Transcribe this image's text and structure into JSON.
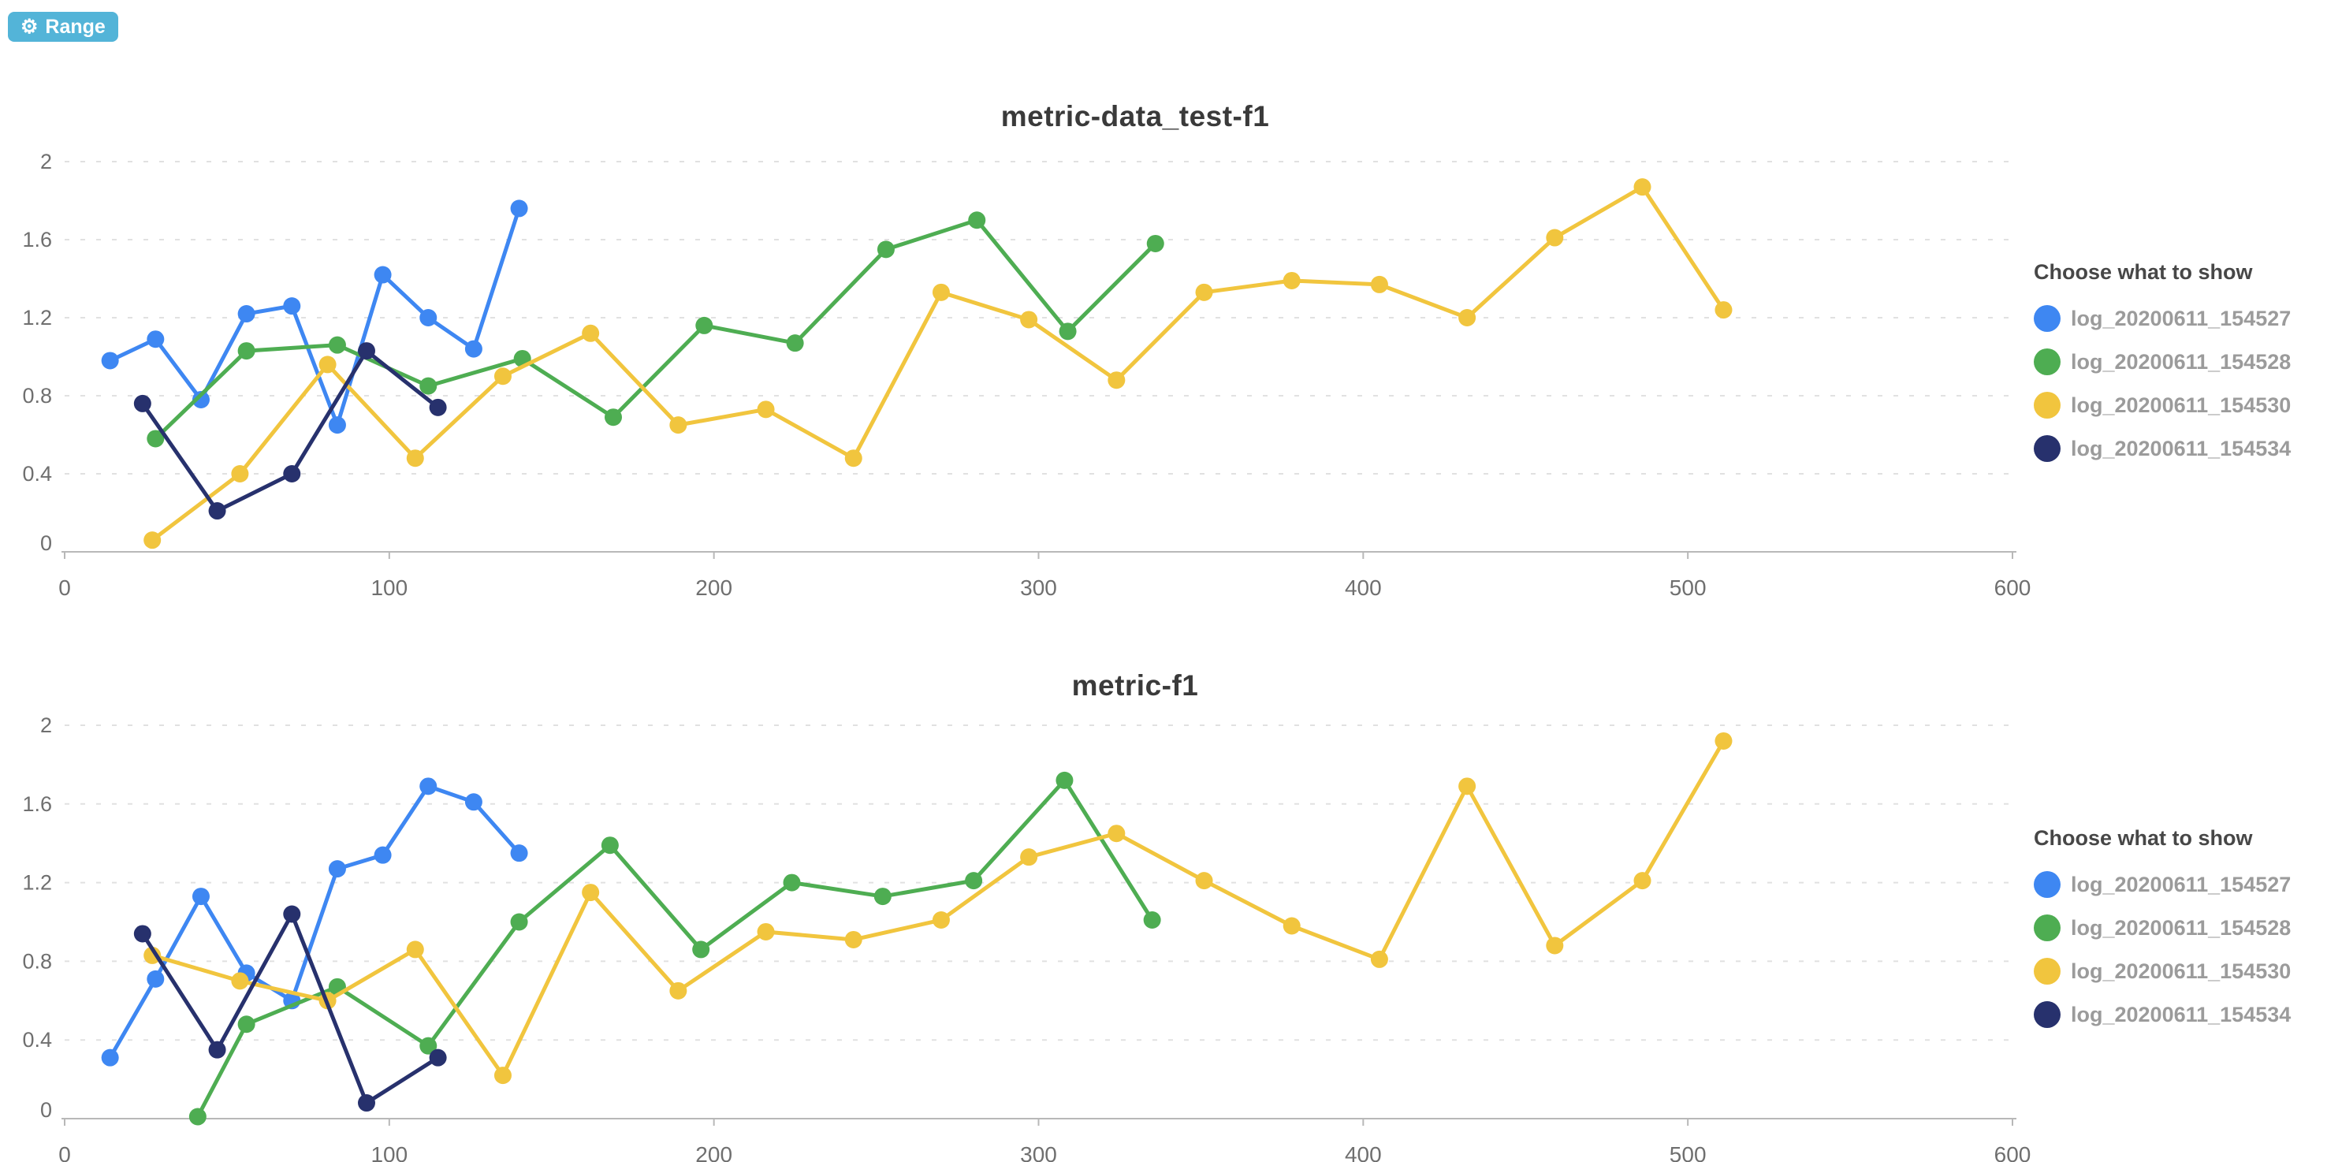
{
  "toolbar": {
    "range_label": "Range",
    "gear_glyph": "⚙",
    "range_color": "#53b4d8"
  },
  "palette": {
    "blue": "#3e87f2",
    "green": "#4ead52",
    "yellow": "#f1c53e",
    "navy": "#27316d",
    "grid": "#e1e1e1",
    "axis": "#b8b8b8",
    "tick_text": "#6f6f6f",
    "title_text": "#3a3a3a",
    "legend_text": "#9b9b9b"
  },
  "chart_data": [
    {
      "type": "line",
      "title": "metric-data_test-f1",
      "legend_title": "Choose what to show",
      "legend_position": "right",
      "xlim": [
        0,
        600
      ],
      "ylim": [
        0,
        2
      ],
      "x_ticks": [
        0,
        100,
        200,
        300,
        400,
        500,
        600
      ],
      "y_ticks": [
        0,
        0.4,
        0.8,
        1.2,
        1.6,
        2
      ],
      "grid": "horizontal-dashed",
      "series": [
        {
          "name": "log_20200611_154527",
          "color": "#3e87f2",
          "x": [
            14,
            28,
            42,
            56,
            70,
            84,
            98,
            112,
            126,
            140
          ],
          "y": [
            0.98,
            1.09,
            0.78,
            1.22,
            1.26,
            0.65,
            1.42,
            1.2,
            1.04,
            1.76
          ]
        },
        {
          "name": "log_20200611_154528",
          "color": "#4ead52",
          "x": [
            28,
            56,
            84,
            112,
            141,
            169,
            197,
            225,
            253,
            281,
            309,
            336
          ],
          "y": [
            0.58,
            1.03,
            1.06,
            0.85,
            0.99,
            0.69,
            1.16,
            1.07,
            1.55,
            1.7,
            1.13,
            1.58
          ]
        },
        {
          "name": "log_20200611_154530",
          "color": "#f1c53e",
          "x": [
            27,
            54,
            81,
            108,
            135,
            162,
            189,
            216,
            243,
            270,
            297,
            324,
            351,
            378,
            405,
            432,
            459,
            486,
            511
          ],
          "y": [
            0.06,
            0.4,
            0.96,
            0.48,
            0.9,
            1.12,
            0.65,
            0.73,
            0.48,
            1.33,
            1.19,
            0.88,
            1.33,
            1.39,
            1.37,
            1.2,
            1.61,
            1.87,
            1.24
          ]
        },
        {
          "name": "log_20200611_154534",
          "color": "#27316d",
          "x": [
            24,
            47,
            70,
            93,
            115
          ],
          "y": [
            0.76,
            0.21,
            0.4,
            1.03,
            0.74
          ]
        }
      ]
    },
    {
      "type": "line",
      "title": "metric-f1",
      "legend_title": "Choose what to show",
      "legend_position": "right",
      "xlim": [
        0,
        600
      ],
      "ylim": [
        0,
        2
      ],
      "x_ticks": [
        0,
        100,
        200,
        300,
        400,
        500,
        600
      ],
      "y_ticks": [
        0,
        0.4,
        0.8,
        1.2,
        1.6,
        2
      ],
      "grid": "horizontal-dashed",
      "series": [
        {
          "name": "log_20200611_154527",
          "color": "#3e87f2",
          "x": [
            14,
            28,
            42,
            56,
            70,
            84,
            98,
            112,
            126,
            140
          ],
          "y": [
            0.31,
            0.71,
            1.13,
            0.74,
            0.6,
            1.27,
            1.34,
            1.69,
            1.61,
            1.35
          ]
        },
        {
          "name": "log_20200611_154528",
          "color": "#4ead52",
          "x": [
            41,
            56,
            84,
            112,
            140,
            168,
            196,
            224,
            252,
            280,
            308,
            335
          ],
          "y": [
            0.01,
            0.48,
            0.67,
            0.37,
            1.0,
            1.39,
            0.86,
            1.2,
            1.13,
            1.21,
            1.72,
            1.01
          ]
        },
        {
          "name": "log_20200611_154530",
          "color": "#f1c53e",
          "x": [
            27,
            54,
            81,
            108,
            135,
            162,
            189,
            216,
            243,
            270,
            297,
            324,
            351,
            378,
            405,
            432,
            459,
            486,
            511
          ],
          "y": [
            0.83,
            0.7,
            0.6,
            0.86,
            0.22,
            1.15,
            0.65,
            0.95,
            0.91,
            1.01,
            1.33,
            1.45,
            1.21,
            0.98,
            0.81,
            1.69,
            0.88,
            1.21,
            1.92
          ]
        },
        {
          "name": "log_20200611_154534",
          "color": "#27316d",
          "x": [
            24,
            47,
            70,
            93,
            115
          ],
          "y": [
            0.94,
            0.35,
            1.04,
            0.08,
            0.31
          ]
        }
      ]
    }
  ]
}
